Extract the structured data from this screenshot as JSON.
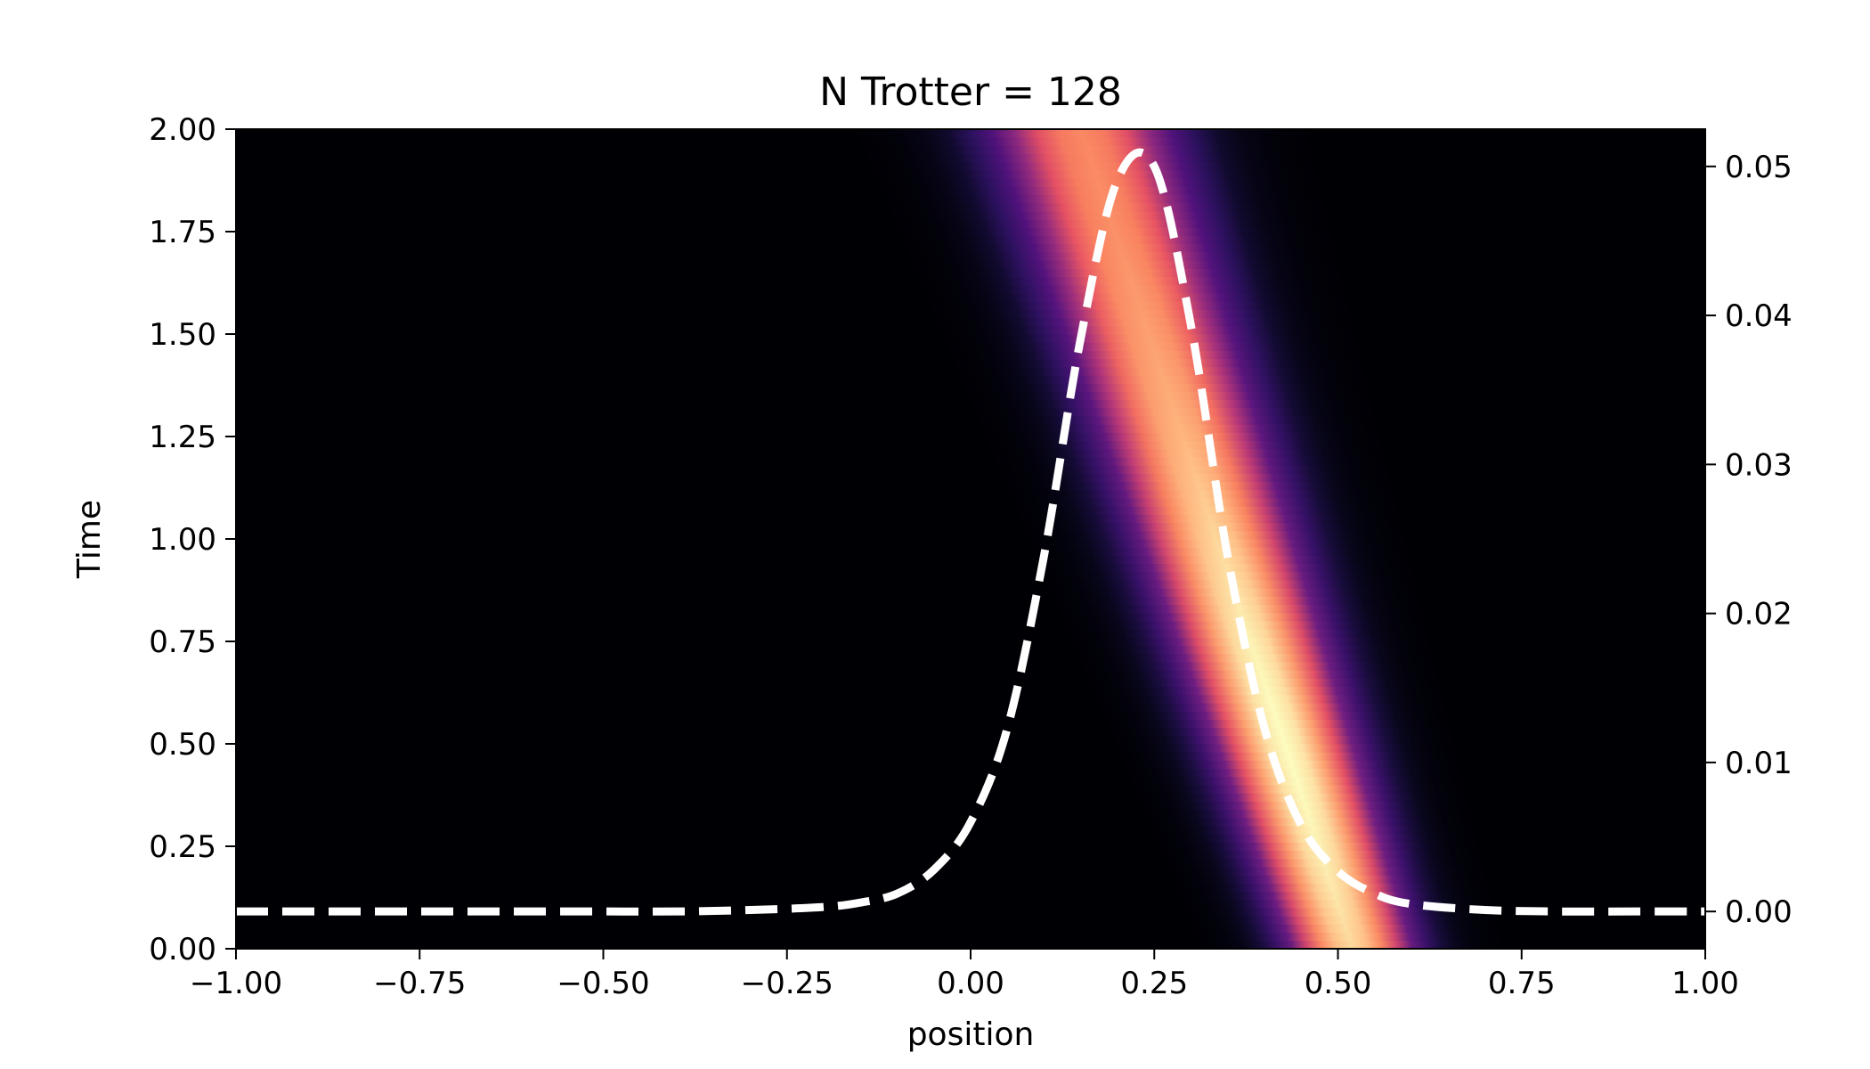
{
  "chart_data": {
    "type": "heatmap",
    "title": "N Trotter = 128",
    "xlabel": "position",
    "ylabel": "Time",
    "y2label": "",
    "xlim": [
      -1.0,
      1.0
    ],
    "ylim": [
      0.0,
      2.0
    ],
    "y2lim": [
      -0.0025,
      0.0525
    ],
    "x_ticks": [
      "−1.00",
      "−0.75",
      "−0.50",
      "−0.25",
      "0.00",
      "0.25",
      "0.50",
      "0.75",
      "1.00"
    ],
    "y_ticks": [
      "0.00",
      "0.25",
      "0.50",
      "0.75",
      "1.00",
      "1.25",
      "1.50",
      "1.75",
      "2.00"
    ],
    "y2_ticks": [
      "0.00",
      "0.01",
      "0.02",
      "0.03",
      "0.04",
      "0.05"
    ],
    "colormap": "magma",
    "heatmap": {
      "description_of_band": "wave packet probability density moving left over time",
      "center_x_at_t0": 0.52,
      "center_x_at_t2": 0.15,
      "width_x_at_t0": 0.06,
      "width_x_at_t2": 0.09
    },
    "series": [
      {
        "style": "dashed",
        "color": "#ffffff",
        "axis": "right",
        "x": [
          -1.0,
          -0.9,
          -0.8,
          -0.7,
          -0.6,
          -0.5,
          -0.4,
          -0.3,
          -0.2,
          -0.15,
          -0.1,
          -0.05,
          0.0,
          0.05,
          0.1,
          0.15,
          0.2,
          0.25,
          0.3,
          0.35,
          0.4,
          0.45,
          0.5,
          0.55,
          0.6,
          0.7,
          0.8,
          0.9,
          1.0
        ],
        "y": [
          0.0,
          0.0,
          0.0,
          0.0,
          0.0,
          0.0,
          0.0,
          0.0001,
          0.0003,
          0.0006,
          0.0012,
          0.0028,
          0.006,
          0.0123,
          0.0239,
          0.0385,
          0.0491,
          0.05,
          0.0393,
          0.0238,
          0.0123,
          0.0058,
          0.0027,
          0.0012,
          0.0005,
          0.0001,
          0.0,
          0.0,
          0.0
        ]
      }
    ]
  }
}
